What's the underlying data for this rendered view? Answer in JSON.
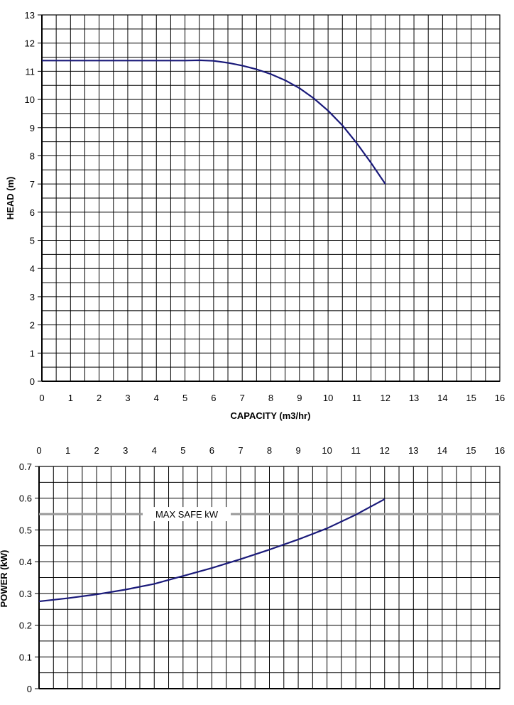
{
  "chart_data": [
    {
      "type": "line",
      "xlabel": "CAPACITY (m3/hr)",
      "ylabel": "HEAD (m)",
      "xlim": [
        0,
        16
      ],
      "ylim": [
        0,
        13
      ],
      "x_ticks": [
        "0",
        "1",
        "2",
        "3",
        "4",
        "5",
        "6",
        "7",
        "8",
        "9",
        "10",
        "11",
        "12",
        "13",
        "14",
        "15",
        "16"
      ],
      "y_ticks": [
        "0",
        "1",
        "2",
        "3",
        "4",
        "5",
        "6",
        "7",
        "8",
        "9",
        "10",
        "11",
        "12",
        "13"
      ],
      "x_tick_position": "bottom",
      "grid": true,
      "series": [
        {
          "color": "#1a1a7a",
          "x": [
            0,
            1,
            2,
            3,
            4,
            5,
            5.5,
            6,
            6.5,
            7,
            7.5,
            8,
            8.5,
            9,
            9.5,
            10,
            10.5,
            11,
            11.5,
            12
          ],
          "y": [
            11.38,
            11.38,
            11.38,
            11.38,
            11.38,
            11.38,
            11.39,
            11.37,
            11.3,
            11.2,
            11.07,
            10.9,
            10.68,
            10.4,
            10.04,
            9.6,
            9.08,
            8.45,
            7.75,
            7.0
          ]
        }
      ]
    },
    {
      "type": "line",
      "xlabel": "",
      "ylabel": "POWER (kW)",
      "xlim": [
        0,
        16
      ],
      "ylim": [
        0,
        0.7
      ],
      "x_ticks": [
        "0",
        "1",
        "2",
        "3",
        "4",
        "5",
        "6",
        "7",
        "8",
        "9",
        "10",
        "11",
        "12",
        "13",
        "14",
        "15",
        "16"
      ],
      "y_ticks": [
        "0",
        "0.1",
        "0.2",
        "0.3",
        "0.4",
        "0.5",
        "0.6",
        "0.7"
      ],
      "x_tick_position": "top",
      "grid": true,
      "reference_line": {
        "label": "MAX SAFE kW",
        "value": 0.55,
        "color": "#999999"
      },
      "series": [
        {
          "color": "#1a1a7a",
          "x": [
            0,
            1,
            2,
            3,
            4,
            5,
            6,
            7,
            8,
            9,
            10,
            11,
            12
          ],
          "y": [
            0.275,
            0.285,
            0.297,
            0.312,
            0.33,
            0.355,
            0.38,
            0.408,
            0.438,
            0.47,
            0.505,
            0.548,
            0.597
          ]
        }
      ]
    }
  ]
}
